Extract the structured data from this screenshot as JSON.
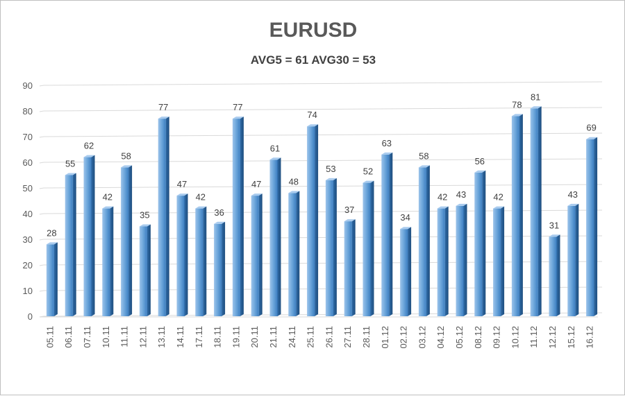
{
  "chart_data": {
    "type": "bar",
    "title": "EURUSD",
    "subtitle": "AVG5 = 61 AVG30 = 53",
    "categories": [
      "05.11",
      "06.11",
      "07.11",
      "10.11",
      "11.11",
      "12.11",
      "13.11",
      "14.11",
      "17.11",
      "18.11",
      "19.11",
      "20.11",
      "21.11",
      "24.11",
      "25.11",
      "26.11",
      "27.11",
      "28.11",
      "01.12",
      "02.12",
      "03.12",
      "04.12",
      "05.12",
      "08.12",
      "09.12",
      "10.12",
      "11.12",
      "12.12",
      "15.12",
      "16.12"
    ],
    "values": [
      28,
      55,
      62,
      42,
      58,
      35,
      77,
      47,
      42,
      36,
      77,
      47,
      61,
      48,
      74,
      53,
      37,
      52,
      63,
      34,
      58,
      42,
      43,
      56,
      42,
      78,
      81,
      31,
      43,
      69
    ],
    "ylim": [
      0,
      90
    ],
    "yticks": [
      0,
      10,
      20,
      30,
      40,
      50,
      60,
      70,
      80,
      90
    ],
    "grid": true,
    "legend": "none",
    "bar_color": "#5b9bd5"
  }
}
